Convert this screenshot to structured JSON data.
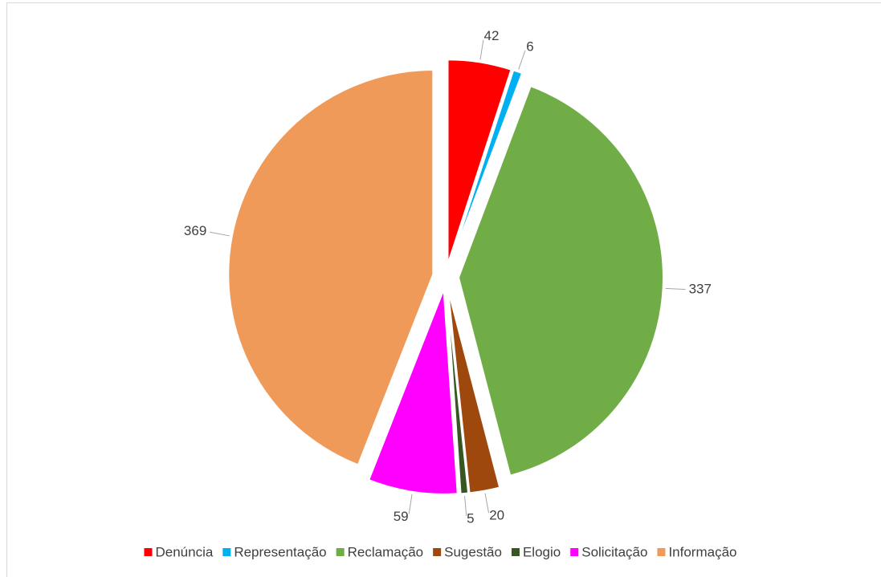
{
  "chart_data": {
    "type": "pie",
    "categories": [
      "Denúncia",
      "Representação",
      "Reclamação",
      "Sugestão",
      "Elogio",
      "Solicitação",
      "Informação"
    ],
    "values": [
      42,
      6,
      337,
      20,
      5,
      59,
      369
    ],
    "colors": [
      "#ff0000",
      "#00b0f0",
      "#70ad47",
      "#9e480e",
      "#375623",
      "#ff00ff",
      "#f09a5a"
    ],
    "legend": "bottom"
  }
}
